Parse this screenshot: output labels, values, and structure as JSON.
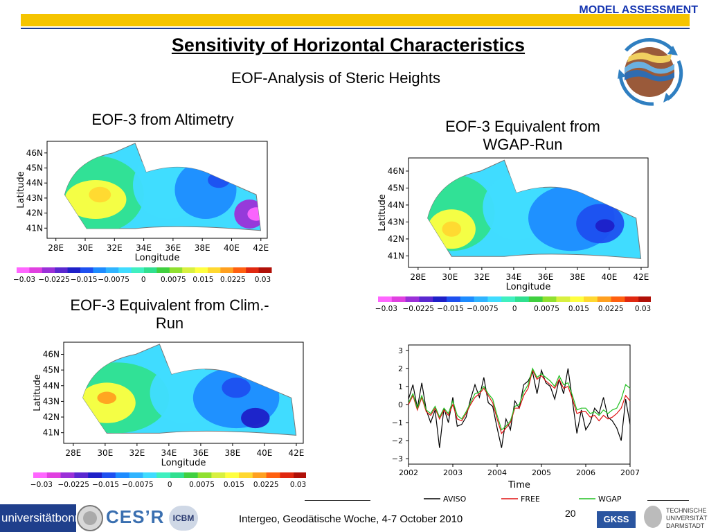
{
  "header": {
    "section": "MODEL ASSESSMENT",
    "title": "Sensitivity of Horizontal Characteristics",
    "subtitle": "EOF-Analysis of Steric Heights"
  },
  "panels": {
    "altimetry": {
      "caption": "EOF-3 from Altimetry"
    },
    "wgap": {
      "caption_line1": "EOF-3 Equivalent from",
      "caption_line2": "WGAP-Run"
    },
    "clim": {
      "caption_line1": "EOF-3 Equivalent from Clim.-",
      "caption_line2": "Run"
    }
  },
  "map_axes": {
    "lat_ticks": [
      "46N",
      "45N",
      "44N",
      "43N",
      "42N",
      "41N"
    ],
    "lon_ticks": [
      "28E",
      "30E",
      "32E",
      "34E",
      "36E",
      "38E",
      "40E",
      "42E"
    ],
    "xlabel": "Longitude",
    "ylabel": "Latitude"
  },
  "colorbar": {
    "labels": [
      "−0.03",
      "−0.0225",
      "−0.015",
      "−0.0075",
      "0",
      "0.0075",
      "0.015",
      "0.0225",
      "0.03"
    ],
    "colors": [
      "#ff66ff",
      "#e040e0",
      "#9b30d8",
      "#5a28d0",
      "#1e20c8",
      "#1e50f0",
      "#1e8cff",
      "#30b4ff",
      "#40dcff",
      "#40f0c0",
      "#30e090",
      "#40d040",
      "#90e030",
      "#d8f040",
      "#ffff40",
      "#ffd830",
      "#ffa020",
      "#ff6010",
      "#e02810",
      "#b01008"
    ]
  },
  "chart_data": {
    "type": "line",
    "xlabel": "Time",
    "ylabel": "",
    "xlim": [
      2002,
      2007
    ],
    "ylim": [
      -3.3,
      3.3
    ],
    "x_ticks": [
      "2002",
      "2003",
      "2004",
      "2005",
      "2006",
      "2007"
    ],
    "y_ticks": [
      "3",
      "2",
      "1",
      "0",
      "−1",
      "−2",
      "−3"
    ],
    "series": [
      {
        "name": "AVISO",
        "color": "#000000",
        "x": [
          2002.0,
          2002.1,
          2002.2,
          2002.3,
          2002.4,
          2002.5,
          2002.6,
          2002.7,
          2002.8,
          2002.9,
          2003.0,
          2003.1,
          2003.2,
          2003.3,
          2003.4,
          2003.5,
          2003.6,
          2003.7,
          2003.8,
          2003.9,
          2004.0,
          2004.1,
          2004.2,
          2004.3,
          2004.4,
          2004.5,
          2004.6,
          2004.7,
          2004.8,
          2004.9,
          2005.0,
          2005.1,
          2005.2,
          2005.3,
          2005.4,
          2005.5,
          2005.6,
          2005.7,
          2005.8,
          2005.9,
          2006.0,
          2006.1,
          2006.2,
          2006.3,
          2006.4,
          2006.5,
          2006.6,
          2006.7,
          2006.8,
          2006.9,
          2007.0
        ],
        "values": [
          0.3,
          1.1,
          -0.2,
          1.2,
          -0.3,
          -1.0,
          -0.3,
          -2.4,
          -0.2,
          -1.0,
          0.4,
          -1.2,
          -1.1,
          -0.7,
          0.3,
          1.1,
          0.4,
          1.5,
          0.1,
          -0.1,
          -1.3,
          -2.4,
          -0.8,
          -1.4,
          0.2,
          -0.2,
          1.1,
          1.3,
          1.8,
          0.6,
          1.9,
          1.2,
          1.0,
          0.3,
          1.4,
          0.6,
          2.0,
          0.2,
          -1.6,
          -0.3,
          -1.4,
          -1.0,
          -0.2,
          -0.5,
          0.4,
          -0.7,
          -0.9,
          -1.3,
          -2.0,
          0.3,
          -1.1
        ]
      },
      {
        "name": "FREE",
        "color": "#e01010",
        "x": [
          2002.0,
          2002.1,
          2002.2,
          2002.3,
          2002.4,
          2002.5,
          2002.6,
          2002.7,
          2002.8,
          2002.9,
          2003.0,
          2003.1,
          2003.2,
          2003.3,
          2003.4,
          2003.5,
          2003.6,
          2003.7,
          2003.8,
          2003.9,
          2004.0,
          2004.1,
          2004.2,
          2004.3,
          2004.4,
          2004.5,
          2004.6,
          2004.7,
          2004.8,
          2004.9,
          2005.0,
          2005.1,
          2005.2,
          2005.3,
          2005.4,
          2005.5,
          2005.6,
          2005.7,
          2005.8,
          2005.9,
          2006.0,
          2006.1,
          2006.2,
          2006.3,
          2006.4,
          2006.5,
          2006.6,
          2006.7,
          2006.8,
          2006.9,
          2007.0
        ],
        "values": [
          0.0,
          0.5,
          -0.3,
          0.4,
          -0.4,
          -0.6,
          -0.2,
          -0.8,
          -0.3,
          -0.6,
          0.0,
          -0.8,
          -0.9,
          -0.5,
          0.0,
          0.4,
          0.6,
          0.9,
          0.5,
          0.1,
          -0.8,
          -1.6,
          -1.3,
          -1.0,
          -0.2,
          -0.2,
          0.5,
          0.9,
          1.9,
          1.4,
          1.6,
          1.3,
          1.1,
          0.9,
          1.4,
          0.9,
          1.0,
          0.3,
          -0.5,
          -0.4,
          -0.4,
          -0.7,
          -0.6,
          -0.9,
          -0.6,
          -0.8,
          -0.7,
          -0.5,
          -0.2,
          0.5,
          0.2
        ]
      },
      {
        "name": "WGAP",
        "color": "#20c020",
        "x": [
          2002.0,
          2002.1,
          2002.2,
          2002.3,
          2002.4,
          2002.5,
          2002.6,
          2002.7,
          2002.8,
          2002.9,
          2003.0,
          2003.1,
          2003.2,
          2003.3,
          2003.4,
          2003.5,
          2003.6,
          2003.7,
          2003.8,
          2003.9,
          2004.0,
          2004.1,
          2004.2,
          2004.3,
          2004.4,
          2004.5,
          2004.6,
          2004.7,
          2004.8,
          2004.9,
          2005.0,
          2005.1,
          2005.2,
          2005.3,
          2005.4,
          2005.5,
          2005.6,
          2005.7,
          2005.8,
          2005.9,
          2006.0,
          2006.1,
          2006.2,
          2006.3,
          2006.4,
          2006.5,
          2006.6,
          2006.7,
          2006.8,
          2006.9,
          2007.0
        ],
        "values": [
          0.1,
          0.6,
          -0.2,
          0.5,
          -0.3,
          -0.5,
          -0.1,
          -0.7,
          -0.2,
          -0.5,
          0.2,
          -0.6,
          -0.8,
          -0.4,
          0.1,
          0.6,
          0.7,
          1.0,
          0.6,
          0.3,
          -0.6,
          -1.4,
          -1.2,
          -0.9,
          -0.1,
          0.0,
          0.7,
          1.1,
          2.0,
          1.5,
          1.7,
          1.5,
          1.3,
          1.0,
          1.6,
          1.1,
          1.2,
          0.5,
          -0.3,
          -0.2,
          -0.2,
          -0.5,
          -0.4,
          -0.6,
          -0.3,
          -0.5,
          -0.3,
          -0.2,
          0.3,
          1.1,
          0.9
        ]
      }
    ]
  },
  "footer": {
    "text": "Intergeo, Geodätische Woche, 4-7 October 2010",
    "page": "20",
    "logos": {
      "bonn": "universitätbonn",
      "cesr": "CES’R",
      "icbm": "ICBM",
      "gkss": "GKSS",
      "tud_line1": "TECHNISCHE",
      "tud_line2": "UNIVERSITÄT",
      "tud_line3": "DARMSTADT"
    }
  }
}
